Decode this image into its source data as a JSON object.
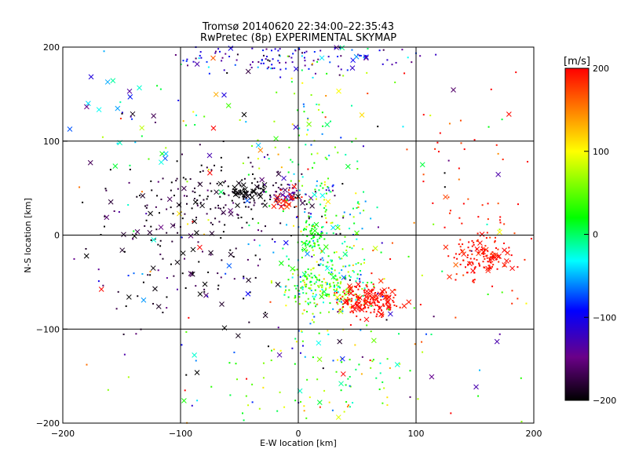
{
  "title_line1": "Tromsø 20140620 22:34:00–22:35:43",
  "title_line2": "RwPretec (8p) EXPERIMENTAL SKYMAP",
  "chart_data": {
    "type": "scatter",
    "title": "Tromsø 20140620 22:34:00–22:35:43",
    "subtitle": "RwPretec (8p) EXPERIMENTAL SKYMAP",
    "xlabel": "E-W location [km]",
    "ylabel": "N-S location [km]",
    "xlim": [
      -200,
      200
    ],
    "ylim": [
      -200,
      200
    ],
    "x_ticks": [
      -200,
      -100,
      0,
      100,
      200
    ],
    "y_ticks": [
      -200,
      -100,
      0,
      100,
      200
    ],
    "grid": true,
    "marker_types": [
      "dot",
      "x"
    ],
    "colorbar": {
      "label": "[m/s]",
      "range": [
        -200,
        200
      ],
      "ticks": [
        200,
        100,
        0,
        -100,
        -200
      ],
      "colormap": [
        "#000000",
        "#6a0088",
        "#0000ff",
        "#00ffff",
        "#00ff00",
        "#ffff00",
        "#ff0000"
      ]
    },
    "clusters": [
      {
        "name": "north-edge",
        "x": -10,
        "y": 188,
        "sx": 55,
        "sy": 8,
        "n": 130,
        "v": -110,
        "sv": 40,
        "xfrac": 0.08
      },
      {
        "name": "north-stream",
        "x": 8,
        "y": 120,
        "sx": 22,
        "sy": 45,
        "n": 70,
        "v": 20,
        "sv": 60,
        "xfrac": 0.05
      },
      {
        "name": "dark-band",
        "x": -60,
        "y": 40,
        "sx": 45,
        "sy": 20,
        "n": 170,
        "v": -185,
        "sv": 20,
        "xfrac": 0.12
      },
      {
        "name": "dark-knot",
        "x": -42,
        "y": 44,
        "sx": 9,
        "sy": 5,
        "n": 45,
        "v": -200,
        "sv": 5,
        "xfrac": 0.4
      },
      {
        "name": "purple-knot",
        "x": -10,
        "y": 48,
        "sx": 10,
        "sy": 7,
        "n": 35,
        "v": -150,
        "sv": 20,
        "xfrac": 0.3
      },
      {
        "name": "red-knot",
        "x": -7,
        "y": 38,
        "sx": 5,
        "sy": 5,
        "n": 25,
        "v": 190,
        "sv": 15,
        "xfrac": 0.3
      },
      {
        "name": "center-column",
        "x": 25,
        "y": 5,
        "sx": 20,
        "sy": 35,
        "n": 140,
        "v": 10,
        "sv": 55,
        "xfrac": 0.04
      },
      {
        "name": "cyan-core",
        "x": 10,
        "y": 0,
        "sx": 6,
        "sy": 8,
        "n": 55,
        "v": 20,
        "sv": 8,
        "xfrac": 0.1
      },
      {
        "name": "green-blob",
        "x": 22,
        "y": -55,
        "sx": 18,
        "sy": 15,
        "n": 220,
        "v": 40,
        "sv": 45,
        "xfrac": 0.05
      },
      {
        "name": "red-blob",
        "x": 60,
        "y": -70,
        "sx": 14,
        "sy": 9,
        "n": 180,
        "v": 195,
        "sv": 10,
        "xfrac": 0.25
      },
      {
        "name": "west-mix",
        "x": -100,
        "y": -30,
        "sx": 40,
        "sy": 35,
        "n": 120,
        "v": -190,
        "sv": 25,
        "xfrac": 0.25
      },
      {
        "name": "south-spread",
        "x": 20,
        "y": -150,
        "sx": 45,
        "sy": 30,
        "n": 90,
        "v": 40,
        "sv": 60,
        "xfrac": 0.06
      },
      {
        "name": "east-red",
        "x": 155,
        "y": -25,
        "sx": 12,
        "sy": 11,
        "n": 130,
        "v": 195,
        "sv": 10,
        "xfrac": 0.2
      },
      {
        "name": "east-sparse",
        "x": 150,
        "y": 40,
        "sx": 30,
        "sy": 60,
        "n": 60,
        "v": 190,
        "sv": 15,
        "xfrac": 0.1
      },
      {
        "name": "northwest-sparse",
        "x": -140,
        "y": 130,
        "sx": 35,
        "sy": 30,
        "n": 40,
        "v": -50,
        "sv": 80,
        "xfrac": 0.6
      },
      {
        "name": "background",
        "x": 0,
        "y": 0,
        "sx": 120,
        "sy": 110,
        "n": 260,
        "v": 0,
        "sv": 130,
        "xfrac": 0.2
      }
    ]
  }
}
